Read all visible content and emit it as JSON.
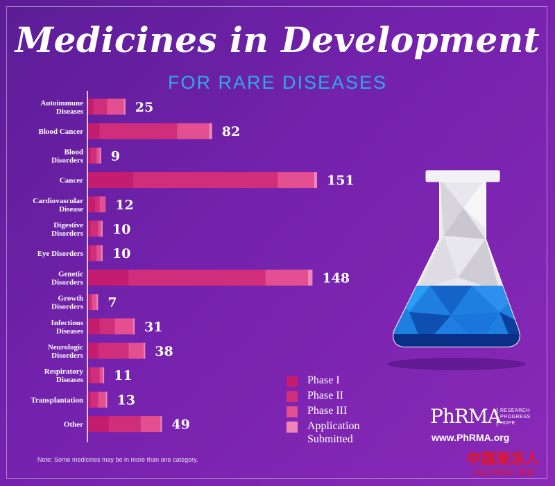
{
  "chart_data": {
    "type": "bar",
    "orientation": "horizontal",
    "stacked": true,
    "title": "Medicines in Development",
    "subtitle": "FOR RARE DISEASES",
    "categories": [
      "Autoimmune\nDiseases",
      "Blood Cancer",
      "Blood\nDisorders",
      "Cancer",
      "Cardiovascular\nDisease",
      "Digestive\nDisorders",
      "Eye Disorders",
      "Genetic\nDisorders",
      "Growth\nDisorders",
      "Infectious\nDiseases",
      "Neurologic\nDisorders",
      "Respiratory\nDiseases",
      "Transplantation",
      "Other"
    ],
    "totals": [
      25,
      82,
      9,
      151,
      12,
      10,
      10,
      148,
      7,
      31,
      38,
      11,
      13,
      49
    ],
    "series": [
      {
        "name": "Phase I",
        "color": "#c41c6e",
        "values": [
          4,
          8,
          2,
          30,
          5,
          2,
          2,
          27,
          1,
          8,
          7,
          2,
          2,
          14
        ]
      },
      {
        "name": "Phase II",
        "color": "#d02d7a",
        "values": [
          9,
          51,
          4,
          95,
          3,
          5,
          4,
          90,
          2,
          10,
          20,
          6,
          5,
          21
        ]
      },
      {
        "name": "Phase III",
        "color": "#e34f90",
        "values": [
          11,
          21,
          2,
          24,
          4,
          2,
          3,
          28,
          3,
          12,
          10,
          2,
          5,
          13
        ]
      },
      {
        "name": "Application\nSubmitted",
        "color": "#f186b6",
        "values": [
          1,
          2,
          1,
          2,
          0,
          1,
          1,
          3,
          1,
          1,
          1,
          1,
          1,
          1
        ]
      }
    ],
    "xlim": [
      0,
      151
    ],
    "grid": false,
    "legend": "bottom-center"
  },
  "note": "Note: Some medicines may be in more than one category.",
  "logo": {
    "name": "PhRMA",
    "tagline": [
      "RESEARCH",
      "PROGRESS",
      "HOPE"
    ],
    "url": "www.PhRMA.org"
  },
  "watermark": {
    "chinese": "中国渐冻人",
    "sub": "( ALS/MND )论坛"
  },
  "colors": {
    "background": "#6b22a3",
    "subtitle": "#2fa8ee",
    "axis": "#ffffff",
    "flask_liquid": "#1f7fe0",
    "watermark": "#e8141c"
  }
}
